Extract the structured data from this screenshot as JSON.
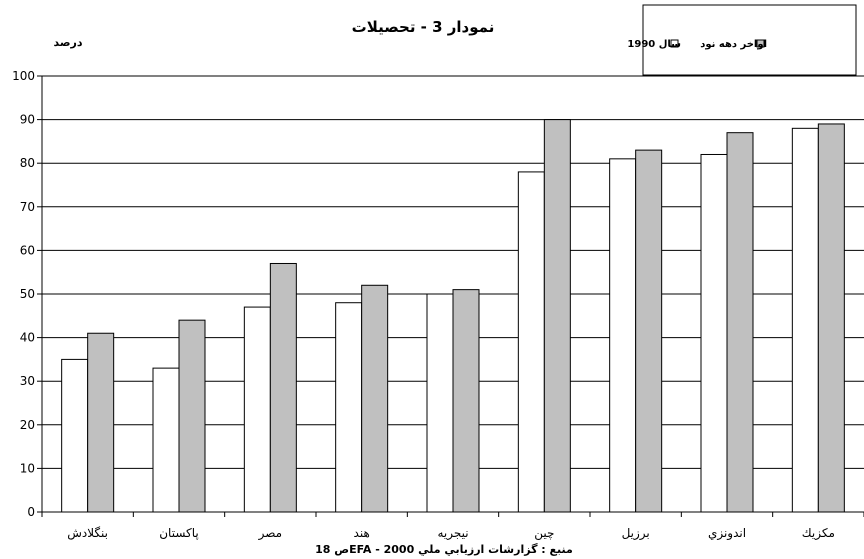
{
  "chart_data": {
    "type": "bar",
    "title": "نمودار 3 - تحصيلات",
    "ylabel": "درصد",
    "source": "منبع : گزارشات ارزيابي ملي 2000  -  EFAص 18",
    "ylim": [
      0,
      100
    ],
    "yticks": [
      0,
      10,
      20,
      30,
      40,
      50,
      60,
      70,
      80,
      90,
      100
    ],
    "grid": true,
    "legend_position": "top-right",
    "categories": [
      "بنگلادش",
      "پاكستان",
      "مصر",
      "هند",
      "نيجريه",
      "چين",
      "برزيل",
      "اندونزي",
      "مكزيك"
    ],
    "series": [
      {
        "name": "سال 1990",
        "color": "#ffffff",
        "values": [
          35,
          33,
          47,
          48,
          50,
          78,
          81,
          82,
          88
        ]
      },
      {
        "name": "اواخر دهه نود",
        "color": "#c0c0c0",
        "values": [
          41,
          44,
          57,
          52,
          51,
          90,
          83,
          87,
          89
        ]
      }
    ]
  }
}
